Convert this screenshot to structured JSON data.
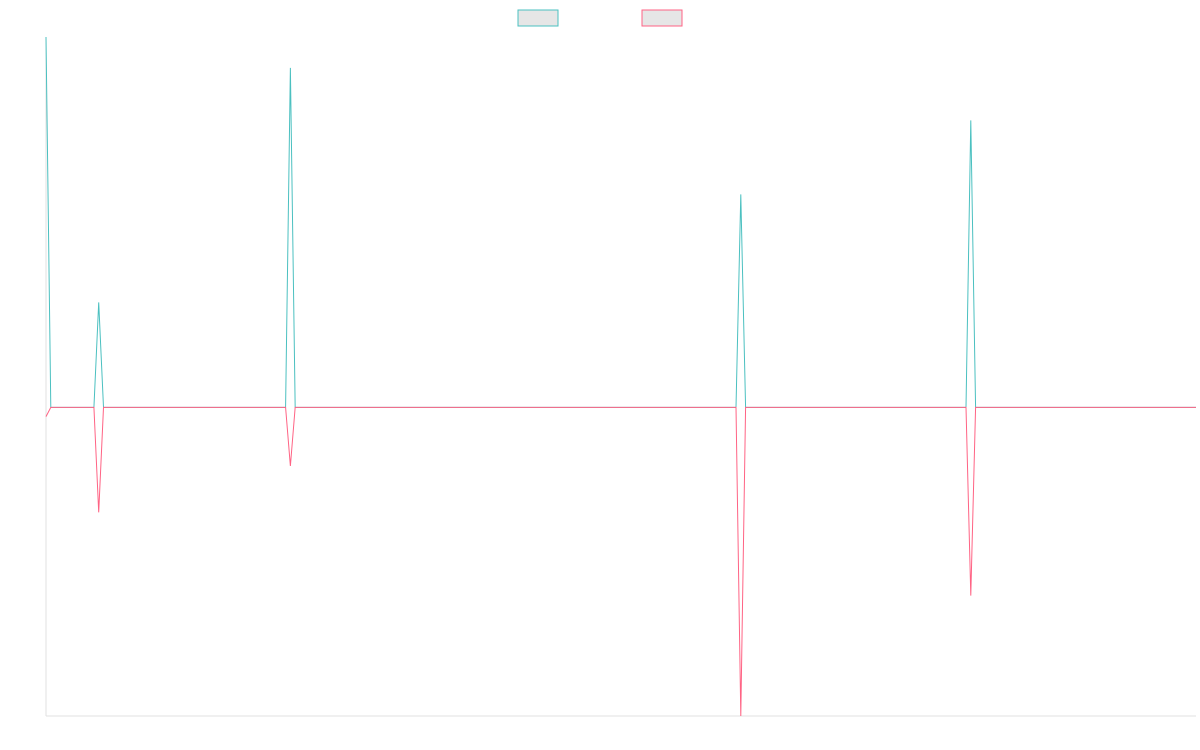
{
  "chart_data": {
    "type": "line",
    "title": "",
    "xlabel": "",
    "ylabel": "",
    "grid": false,
    "legend_placement": "top-center",
    "x": [
      0,
      1,
      2,
      3,
      4,
      5,
      6,
      7,
      8,
      9,
      10,
      11,
      12,
      13,
      14,
      15,
      16,
      17,
      18,
      19,
      20,
      21,
      22,
      23,
      24,
      25,
      26,
      27,
      28,
      29,
      30,
      31,
      32,
      33,
      34,
      35,
      36,
      37,
      38,
      39,
      40,
      41,
      42,
      43,
      44,
      45,
      46,
      47,
      48,
      49,
      50,
      51,
      52,
      53,
      54,
      55,
      56,
      57,
      58,
      59,
      60,
      61,
      62,
      63,
      64,
      65,
      66,
      67,
      68,
      69,
      70,
      71,
      72,
      73,
      74,
      75,
      76,
      77,
      78,
      79,
      80,
      81,
      82,
      83,
      84,
      85,
      86,
      87,
      88,
      89,
      90,
      91,
      92,
      93,
      94,
      95,
      96,
      97,
      98,
      99,
      100,
      101,
      102,
      103,
      104,
      105,
      106,
      107,
      108,
      109,
      110,
      111,
      112,
      113,
      114,
      115,
      116,
      117,
      118,
      119,
      120,
      121,
      122,
      123,
      124,
      125,
      126,
      127,
      128,
      129,
      130,
      131,
      132,
      133,
      134,
      135,
      136,
      137,
      138,
      139,
      140,
      141,
      142,
      143,
      144,
      145,
      146,
      147,
      148,
      149,
      150,
      151,
      152,
      153,
      154,
      155,
      156,
      157,
      158,
      159,
      160,
      161,
      162,
      163,
      164,
      165,
      166,
      167,
      168,
      169,
      170,
      171,
      172,
      173,
      174,
      175,
      176,
      177,
      178,
      179,
      180,
      181,
      182,
      183,
      184,
      185,
      186,
      187,
      188,
      189,
      190,
      191,
      192,
      193,
      194,
      195,
      196,
      197,
      198,
      199,
      200,
      201,
      202,
      203,
      204,
      205,
      206,
      207,
      208,
      209,
      210,
      211,
      212,
      213,
      214,
      215,
      216,
      217,
      218,
      219,
      220,
      221,
      222,
      223,
      224,
      225,
      226,
      227,
      228,
      229,
      230,
      231,
      232,
      233,
      234,
      235,
      236,
      237,
      238,
      239,
      240
    ],
    "ylim": [
      -100,
      120
    ],
    "series": [
      {
        "name": "",
        "color": "#4bc0c0",
        "fill": "#e6e6e6",
        "values": [
          120,
          0,
          0,
          0,
          0,
          0,
          0,
          0,
          0,
          0,
          0,
          34,
          0,
          0,
          0,
          0,
          0,
          0,
          0,
          0,
          0,
          0,
          0,
          0,
          0,
          0,
          0,
          0,
          0,
          0,
          0,
          0,
          0,
          0,
          0,
          0,
          0,
          0,
          0,
          0,
          0,
          0,
          0,
          0,
          0,
          0,
          0,
          0,
          0,
          0,
          0,
          110,
          0,
          0,
          0,
          0,
          0,
          0,
          0,
          0,
          0,
          0,
          0,
          0,
          0,
          0,
          0,
          0,
          0,
          0,
          0,
          0,
          0,
          0,
          0,
          0,
          0,
          0,
          0,
          0,
          0,
          0,
          0,
          0,
          0,
          0,
          0,
          0,
          0,
          0,
          0,
          0,
          0,
          0,
          0,
          0,
          0,
          0,
          0,
          0,
          0,
          0,
          0,
          0,
          0,
          0,
          0,
          0,
          0,
          0,
          0,
          0,
          0,
          0,
          0,
          0,
          0,
          0,
          0,
          0,
          0,
          0,
          0,
          0,
          0,
          0,
          0,
          0,
          0,
          0,
          0,
          0,
          0,
          0,
          0,
          0,
          0,
          0,
          0,
          0,
          0,
          0,
          0,
          0,
          0,
          69,
          0,
          0,
          0,
          0,
          0,
          0,
          0,
          0,
          0,
          0,
          0,
          0,
          0,
          0,
          0,
          0,
          0,
          0,
          0,
          0,
          0,
          0,
          0,
          0,
          0,
          0,
          0,
          0,
          0,
          0,
          0,
          0,
          0,
          0,
          0,
          0,
          0,
          0,
          0,
          0,
          0,
          0,
          0,
          0,
          0,
          0,
          0,
          93,
          0,
          0,
          0,
          0,
          0,
          0,
          0,
          0,
          0,
          0,
          0,
          0,
          0,
          0,
          0,
          0,
          0,
          0,
          0,
          0,
          0,
          0,
          0,
          0,
          0,
          0,
          0,
          0,
          0,
          0,
          0,
          0,
          0,
          0,
          0,
          0,
          0,
          0,
          0,
          0,
          0,
          0,
          0,
          0,
          0,
          0,
          0
        ]
      },
      {
        "name": "",
        "color": "#ff6384",
        "fill": "#e6e6e6",
        "values": [
          -3,
          0,
          0,
          0,
          0,
          0,
          0,
          0,
          0,
          0,
          0,
          -34,
          0,
          0,
          0,
          0,
          0,
          0,
          0,
          0,
          0,
          0,
          0,
          0,
          0,
          0,
          0,
          0,
          0,
          0,
          0,
          0,
          0,
          0,
          0,
          0,
          0,
          0,
          0,
          0,
          0,
          0,
          0,
          0,
          0,
          0,
          0,
          0,
          0,
          0,
          0,
          -19,
          0,
          0,
          0,
          0,
          0,
          0,
          0,
          0,
          0,
          0,
          0,
          0,
          0,
          0,
          0,
          0,
          0,
          0,
          0,
          0,
          0,
          0,
          0,
          0,
          0,
          0,
          0,
          0,
          0,
          0,
          0,
          0,
          0,
          0,
          0,
          0,
          0,
          0,
          0,
          0,
          0,
          0,
          0,
          0,
          0,
          0,
          0,
          0,
          0,
          0,
          0,
          0,
          0,
          0,
          0,
          0,
          0,
          0,
          0,
          0,
          0,
          0,
          0,
          0,
          0,
          0,
          0,
          0,
          0,
          0,
          0,
          0,
          0,
          0,
          0,
          0,
          0,
          0,
          0,
          0,
          0,
          0,
          0,
          0,
          0,
          0,
          0,
          0,
          0,
          0,
          0,
          0,
          0,
          -100,
          0,
          0,
          0,
          0,
          0,
          0,
          0,
          0,
          0,
          0,
          0,
          0,
          0,
          0,
          0,
          0,
          0,
          0,
          0,
          0,
          0,
          0,
          0,
          0,
          0,
          0,
          0,
          0,
          0,
          0,
          0,
          0,
          0,
          0,
          0,
          0,
          0,
          0,
          0,
          0,
          0,
          0,
          0,
          0,
          0,
          0,
          0,
          -61,
          0,
          0,
          0,
          0,
          0,
          0,
          0,
          0,
          0,
          0,
          0,
          0,
          0,
          0,
          0,
          0,
          0,
          0,
          0,
          0,
          0,
          0,
          0,
          0,
          0,
          0,
          0,
          0,
          0,
          0,
          0,
          0,
          0,
          0,
          0,
          0,
          0,
          0,
          0,
          0,
          0,
          0,
          0,
          0,
          0,
          0,
          0
        ]
      }
    ]
  }
}
